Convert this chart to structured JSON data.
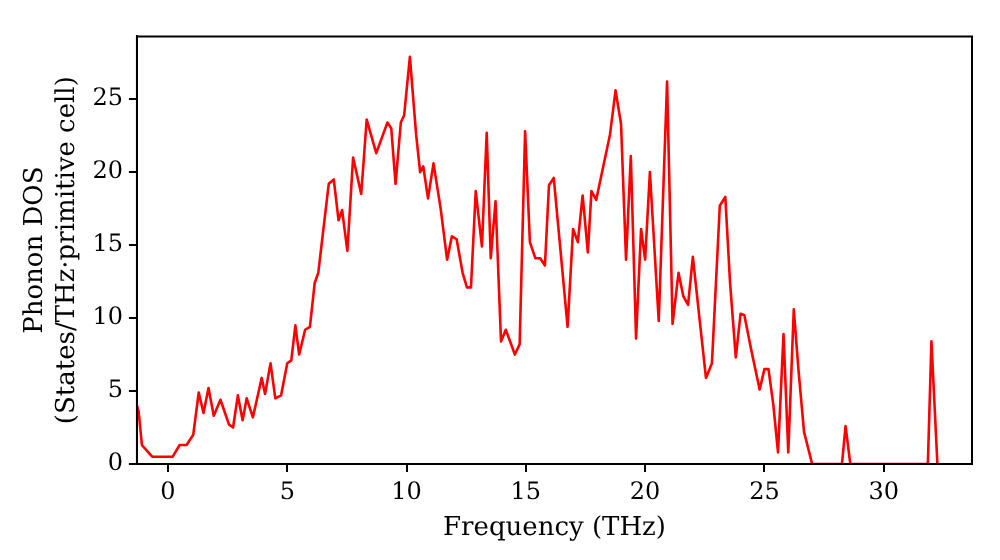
{
  "chart_data": {
    "type": "line",
    "xlabel": "Frequency (THz)",
    "ylabel": "Phonon DOS\n(States/THz·primitive cell)",
    "xlim": [
      -1.3,
      33.7
    ],
    "ylim": [
      0,
      29.3
    ],
    "xticks": [
      0,
      5,
      10,
      15,
      20,
      25,
      30
    ],
    "yticks": [
      0,
      5,
      10,
      15,
      20,
      25
    ],
    "grid": false,
    "legend": false,
    "marker": "none",
    "line_style": "solid",
    "series": [
      {
        "color": "#ff0000",
        "x": [
          -1.3,
          -1.23,
          -1.09,
          -0.66,
          0.2,
          0.49,
          0.78,
          1.06,
          1.29,
          1.49,
          1.7,
          1.92,
          2.2,
          2.56,
          2.73,
          2.93,
          3.13,
          3.3,
          3.56,
          3.93,
          4.07,
          4.3,
          4.5,
          4.74,
          5.0,
          5.17,
          5.34,
          5.5,
          5.75,
          5.95,
          6.15,
          6.3,
          6.74,
          6.95,
          7.15,
          7.3,
          7.52,
          7.76,
          8.1,
          8.33,
          8.73,
          9.2,
          9.36,
          9.54,
          9.76,
          9.9,
          10.14,
          10.4,
          10.57,
          10.7,
          10.9,
          11.13,
          11.43,
          11.7,
          11.9,
          12.1,
          12.35,
          12.53,
          12.7,
          12.9,
          13.16,
          13.36,
          13.53,
          13.73,
          13.96,
          14.16,
          14.54,
          14.74,
          14.97,
          15.17,
          15.4,
          15.6,
          15.8,
          15.97,
          16.17,
          16.75,
          16.98,
          17.18,
          17.38,
          17.6,
          17.75,
          17.95,
          18.53,
          18.76,
          18.99,
          19.2,
          19.4,
          19.62,
          19.83,
          20.0,
          20.2,
          20.57,
          20.92,
          21.15,
          21.4,
          21.6,
          21.8,
          22.0,
          22.27,
          22.55,
          22.8,
          23.13,
          23.36,
          23.56,
          23.8,
          24.0,
          24.16,
          24.45,
          24.8,
          25.0,
          25.17,
          25.37,
          25.57,
          25.8,
          26.0,
          26.23,
          26.43,
          26.66,
          27.0,
          28.25,
          28.4,
          28.6,
          31.85,
          32.0,
          32.25
        ],
        "values": [
          4.0,
          3.6,
          1.3,
          0.5,
          0.5,
          1.3,
          1.3,
          2.0,
          4.9,
          3.5,
          5.2,
          3.3,
          4.4,
          2.7,
          2.5,
          4.7,
          3.0,
          4.5,
          3.2,
          5.9,
          4.8,
          6.9,
          4.5,
          4.7,
          6.9,
          7.1,
          9.5,
          7.5,
          9.2,
          9.4,
          12.4,
          13.1,
          19.2,
          19.5,
          16.7,
          17.4,
          14.6,
          21.0,
          18.5,
          23.6,
          21.3,
          23.4,
          23.0,
          19.2,
          23.4,
          23.9,
          27.9,
          22.6,
          20.0,
          20.4,
          18.2,
          20.6,
          17.5,
          14.0,
          15.6,
          15.4,
          13.1,
          12.1,
          12.1,
          18.7,
          14.9,
          22.7,
          14.1,
          18.0,
          8.4,
          9.2,
          7.5,
          8.2,
          22.8,
          15.2,
          14.1,
          14.1,
          13.6,
          19.1,
          19.6,
          9.4,
          16.1,
          15.2,
          18.4,
          14.5,
          18.7,
          18.1,
          22.6,
          25.6,
          23.3,
          14.0,
          21.1,
          8.6,
          16.1,
          14.0,
          20.0,
          9.8,
          26.2,
          9.6,
          13.1,
          11.5,
          10.9,
          14.2,
          10.1,
          5.9,
          6.9,
          17.7,
          18.3,
          12.4,
          7.3,
          10.3,
          10.2,
          7.8,
          5.1,
          6.5,
          6.5,
          4.1,
          0.8,
          8.9,
          0.8,
          10.6,
          6.4,
          2.2,
          0,
          0,
          2.6,
          0,
          0,
          8.4,
          0
        ]
      }
    ]
  }
}
